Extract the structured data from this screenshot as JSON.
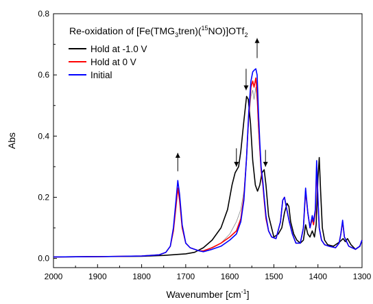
{
  "chart_data": {
    "type": "line",
    "title_parts": {
      "prefix": "Re-oxidation of [Fe(TMG",
      "sub1": "3",
      "mid1": "tren)(",
      "sup1": "15",
      "mid2": "NO)]OTf",
      "sub2": "2"
    },
    "xlabel_parts": {
      "main": "Wavenumber [cm",
      "sup": "-1",
      "end": "]"
    },
    "ylabel": "Abs",
    "xlim": [
      2000,
      1300
    ],
    "ylim": [
      -0.03,
      0.8
    ],
    "x_ticks": [
      2000,
      1900,
      1800,
      1700,
      1600,
      1500,
      1400,
      1300
    ],
    "x_tick_labels": [
      "2000",
      "1900",
      "1800",
      "1700",
      "1600",
      "1500",
      "1400",
      "1300"
    ],
    "y_ticks": [
      0.0,
      0.2,
      0.4,
      0.6,
      0.8
    ],
    "y_tick_labels": [
      "0.0",
      "0.2",
      "0.4",
      "0.6",
      "0.8"
    ],
    "legend_position": "top-left",
    "series": [
      {
        "name": "Hold at -1.0 V",
        "color": "#000000",
        "x": [
          2000,
          1900,
          1800,
          1750,
          1720,
          1700,
          1680,
          1660,
          1640,
          1620,
          1605,
          1595,
          1588,
          1580,
          1575,
          1568,
          1562,
          1558,
          1553,
          1548,
          1542,
          1537,
          1532,
          1527,
          1522,
          1518,
          1512,
          1500,
          1490,
          1482,
          1476,
          1470,
          1466,
          1462,
          1455,
          1448,
          1440,
          1433,
          1428,
          1423,
          1418,
          1413,
          1408,
          1404,
          1400,
          1397,
          1394,
          1390,
          1385,
          1378,
          1365,
          1350,
          1343,
          1338,
          1333,
          1325,
          1315,
          1305,
          1300
        ],
        "y": [
          0.005,
          0.006,
          0.007,
          0.01,
          0.013,
          0.015,
          0.02,
          0.035,
          0.06,
          0.1,
          0.16,
          0.24,
          0.28,
          0.3,
          0.35,
          0.45,
          0.53,
          0.52,
          0.44,
          0.32,
          0.24,
          0.22,
          0.24,
          0.28,
          0.29,
          0.24,
          0.14,
          0.07,
          0.08,
          0.1,
          0.15,
          0.18,
          0.17,
          0.12,
          0.08,
          0.06,
          0.05,
          0.06,
          0.11,
          0.08,
          0.07,
          0.09,
          0.07,
          0.11,
          0.26,
          0.33,
          0.22,
          0.1,
          0.06,
          0.045,
          0.04,
          0.055,
          0.065,
          0.055,
          0.065,
          0.045,
          0.03,
          0.04,
          0.06
        ]
      },
      {
        "name": "Hold at 0 V",
        "color": "#ff0000",
        "x": [
          2000,
          1900,
          1800,
          1760,
          1745,
          1735,
          1728,
          1722,
          1718,
          1714,
          1708,
          1700,
          1690,
          1680,
          1670,
          1660,
          1640,
          1620,
          1600,
          1585,
          1575,
          1568,
          1562,
          1557,
          1552,
          1548,
          1545,
          1541,
          1538,
          1535,
          1532,
          1529,
          1525,
          1522,
          1518,
          1512,
          1505,
          1495,
          1485,
          1480,
          1476,
          1472,
          1465,
          1458,
          1450,
          1440,
          1433,
          1428,
          1423,
          1418,
          1413,
          1410,
          1406,
          1403,
          1400,
          1397,
          1392,
          1385,
          1375,
          1360,
          1352,
          1348,
          1344,
          1340,
          1330,
          1315,
          1305,
          1300
        ],
        "y": [
          0.005,
          0.006,
          0.008,
          0.012,
          0.02,
          0.04,
          0.09,
          0.17,
          0.23,
          0.19,
          0.1,
          0.05,
          0.035,
          0.03,
          0.025,
          0.025,
          0.035,
          0.05,
          0.07,
          0.09,
          0.13,
          0.2,
          0.33,
          0.47,
          0.56,
          0.58,
          0.56,
          0.59,
          0.54,
          0.44,
          0.36,
          0.29,
          0.24,
          0.19,
          0.13,
          0.09,
          0.07,
          0.065,
          0.12,
          0.19,
          0.2,
          0.17,
          0.12,
          0.08,
          0.05,
          0.05,
          0.1,
          0.22,
          0.15,
          0.1,
          0.13,
          0.11,
          0.15,
          0.3,
          0.19,
          0.1,
          0.06,
          0.045,
          0.04,
          0.035,
          0.05,
          0.08,
          0.12,
          0.07,
          0.04,
          0.03,
          0.04,
          0.06
        ]
      },
      {
        "name": "Initial",
        "color": "#0000ff",
        "x": [
          2000,
          1900,
          1800,
          1760,
          1745,
          1735,
          1728,
          1722,
          1718,
          1714,
          1708,
          1700,
          1690,
          1680,
          1670,
          1660,
          1640,
          1620,
          1600,
          1585,
          1575,
          1568,
          1562,
          1557,
          1552,
          1548,
          1545,
          1541,
          1538,
          1535,
          1532,
          1529,
          1525,
          1522,
          1518,
          1512,
          1505,
          1495,
          1485,
          1480,
          1476,
          1472,
          1465,
          1458,
          1450,
          1440,
          1433,
          1428,
          1423,
          1418,
          1413,
          1410,
          1406,
          1403,
          1400,
          1397,
          1392,
          1385,
          1375,
          1360,
          1352,
          1348,
          1344,
          1340,
          1330,
          1315,
          1305,
          1300
        ],
        "y": [
          0.005,
          0.006,
          0.008,
          0.012,
          0.02,
          0.04,
          0.1,
          0.19,
          0.255,
          0.21,
          0.11,
          0.05,
          0.035,
          0.03,
          0.025,
          0.022,
          0.03,
          0.04,
          0.06,
          0.08,
          0.12,
          0.19,
          0.33,
          0.48,
          0.58,
          0.61,
          0.615,
          0.62,
          0.6,
          0.48,
          0.38,
          0.3,
          0.25,
          0.2,
          0.14,
          0.09,
          0.07,
          0.065,
          0.12,
          0.19,
          0.2,
          0.17,
          0.12,
          0.08,
          0.05,
          0.05,
          0.1,
          0.23,
          0.15,
          0.1,
          0.14,
          0.12,
          0.16,
          0.32,
          0.2,
          0.1,
          0.06,
          0.045,
          0.04,
          0.035,
          0.05,
          0.08,
          0.125,
          0.07,
          0.04,
          0.03,
          0.04,
          0.06
        ]
      },
      {
        "name": "",
        "color": "#888888",
        "x": [
          1650,
          1620,
          1600,
          1585,
          1575,
          1568,
          1562,
          1557,
          1552,
          1548,
          1545,
          1541,
          1538,
          1535,
          1532,
          1529,
          1525,
          1520
        ],
        "y": [
          0.03,
          0.05,
          0.08,
          0.12,
          0.16,
          0.22,
          0.33,
          0.45,
          0.53,
          0.55,
          0.52,
          0.56,
          0.51,
          0.42,
          0.35,
          0.28,
          0.24,
          0.18
        ]
      }
    ],
    "annotations": [
      {
        "type": "arrow",
        "direction": "up",
        "x": 1718,
        "y_from": 0.285,
        "y_to": 0.345
      },
      {
        "type": "arrow",
        "direction": "down",
        "x": 1585,
        "y_from": 0.36,
        "y_to": 0.3
      },
      {
        "type": "arrow",
        "direction": "down",
        "x": 1563,
        "y_from": 0.62,
        "y_to": 0.55
      },
      {
        "type": "arrow",
        "direction": "up",
        "x": 1538,
        "y_from": 0.655,
        "y_to": 0.72
      },
      {
        "type": "arrow",
        "direction": "down",
        "x": 1519,
        "y_from": 0.355,
        "y_to": 0.3
      }
    ],
    "grid": false
  }
}
